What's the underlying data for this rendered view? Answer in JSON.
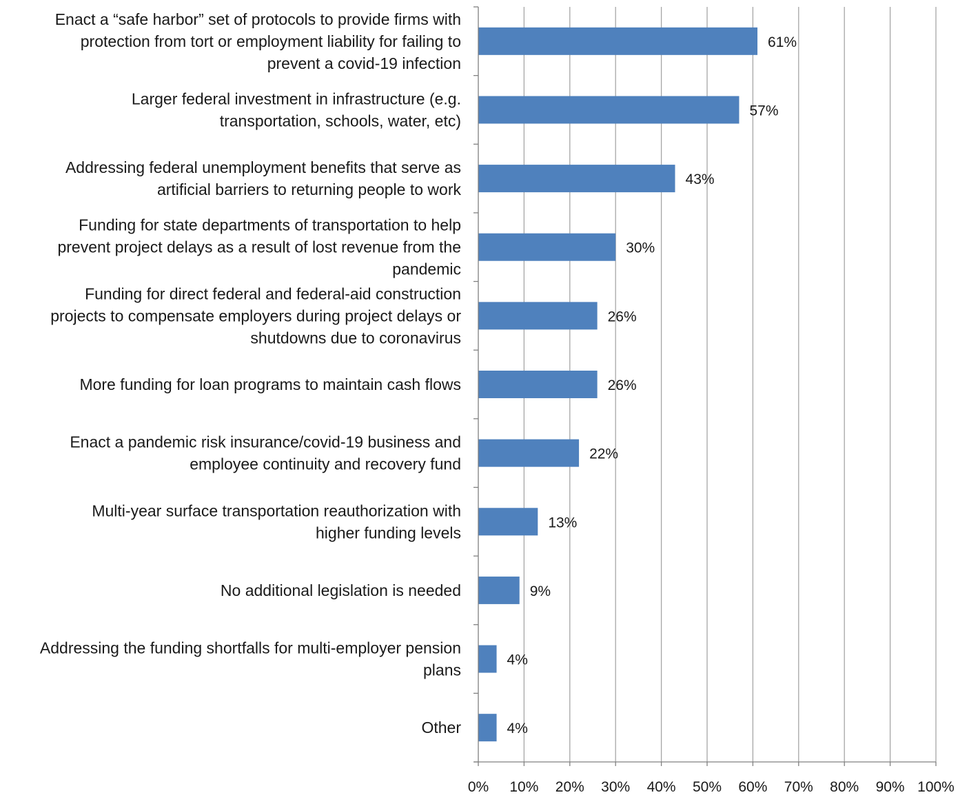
{
  "chart_data": {
    "type": "bar",
    "orientation": "horizontal",
    "categories": [
      "Enact a “safe harbor” set of protocols to provide firms with protection from tort or employment liability for failing to prevent a covid-19 infection",
      "Larger federal investment in infrastructure (e.g. transportation, schools, water, etc)",
      "Addressing federal unemployment benefits that serve as artificial barriers to returning people to work",
      "Funding for state departments of transportation to help prevent project delays as a result of lost revenue from the pandemic",
      "Funding for direct federal and federal-aid construction projects to compensate employers during project delays or shutdowns due to coronavirus",
      "More funding for loan programs to maintain cash flows",
      "Enact a pandemic risk insurance/covid-19 business and employee continuity and recovery fund",
      "Multi-year surface transportation reauthorization with higher funding levels",
      "No additional legislation is needed",
      "Addressing the funding shortfalls for multi-employer pension plans",
      "Other"
    ],
    "category_lines": [
      [
        "Enact a “safe harbor” set of protocols to provide firms with",
        "protection from tort or employment liability for failing to",
        "prevent a covid-19 infection"
      ],
      [
        "Larger federal investment in infrastructure (e.g.",
        "transportation, schools, water, etc)"
      ],
      [
        "Addressing federal unemployment benefits that serve as",
        "artificial barriers to returning people to work"
      ],
      [
        "Funding for state departments of transportation to help",
        "prevent project delays as a result of lost revenue from the",
        "pandemic"
      ],
      [
        "Funding for direct federal and federal-aid construction",
        "projects to compensate employers during project delays or",
        "shutdowns due to coronavirus"
      ],
      [
        "More funding for loan programs to maintain cash flows"
      ],
      [
        "Enact a pandemic risk insurance/covid-19 business and",
        "employee continuity and recovery fund"
      ],
      [
        "Multi-year surface transportation reauthorization with",
        "higher funding levels"
      ],
      [
        "No additional legislation is needed"
      ],
      [
        "Addressing the funding shortfalls for multi-employer pension",
        "plans"
      ],
      [
        "Other"
      ]
    ],
    "values": [
      61,
      57,
      43,
      30,
      26,
      26,
      22,
      13,
      9,
      4,
      4
    ],
    "value_labels": [
      "61%",
      "57%",
      "43%",
      "30%",
      "26%",
      "26%",
      "22%",
      "13%",
      "9%",
      "4%",
      "4%"
    ],
    "xlim": [
      0,
      100
    ],
    "x_ticks": [
      "0%",
      "10%",
      "20%",
      "30%",
      "40%",
      "50%",
      "60%",
      "70%",
      "80%",
      "90%",
      "100%"
    ],
    "grid": true,
    "bar_color": "#4f81bd",
    "grid_color": "#a6a6a6",
    "axis_color": "#808080",
    "title": "",
    "xlabel": "",
    "ylabel": ""
  }
}
